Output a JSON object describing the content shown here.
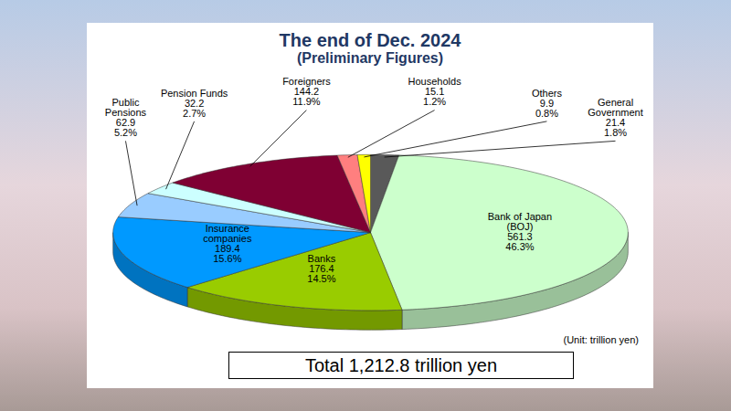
{
  "chart_data": {
    "type": "pie",
    "title": "The end of Dec. 2024",
    "subtitle": "(Preliminary Figures)",
    "categories": [
      "General Government",
      "Bank of Japan (BOJ)",
      "Banks",
      "Insurance companies",
      "Public Pensions",
      "Pension Funds",
      "Foreigners",
      "Households",
      "Others"
    ],
    "values": [
      21.4,
      561.3,
      176.4,
      189.4,
      62.9,
      32.2,
      144.2,
      15.1,
      9.9
    ],
    "shares": [
      1.8,
      46.3,
      14.5,
      15.6,
      5.2,
      2.7,
      11.9,
      1.2,
      0.8
    ],
    "share_labels": [
      "1.8%",
      "46.3%",
      "14.5%",
      "15.6%",
      "5.2%",
      "2.7%",
      "11.9%",
      "1.2%",
      "0.8%"
    ],
    "colors": [
      "#595959",
      "#ccffcc",
      "#99cc00",
      "#0099ff",
      "#99ccff",
      "#ccffff",
      "#7f0033",
      "#ff7f7f",
      "#ffff00"
    ],
    "total": 1212.8,
    "total_label": "Total 1,212.8 trillion yen",
    "unit_note": "(Unit: trillion yen)",
    "data_labels": true
  }
}
